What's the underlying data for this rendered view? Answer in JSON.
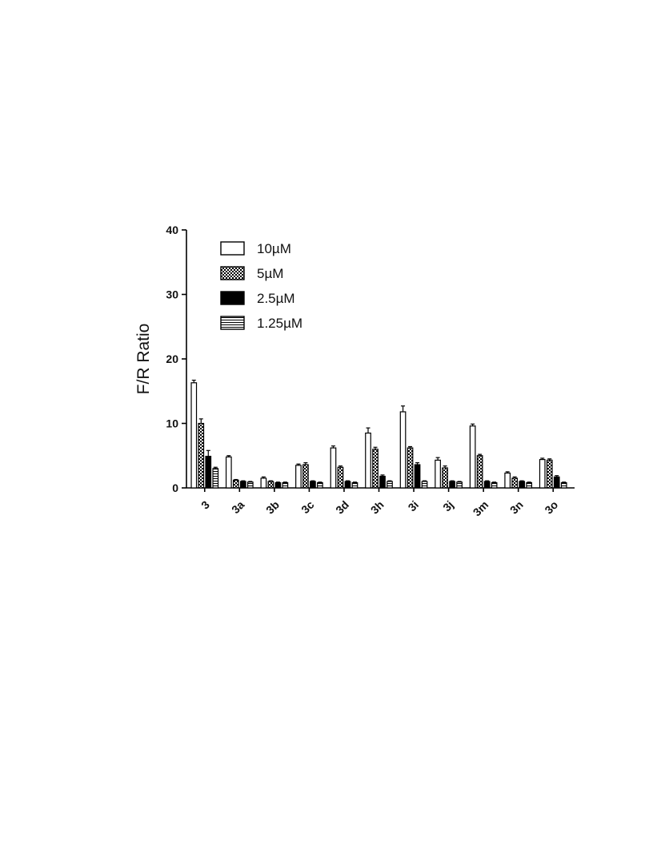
{
  "chart_data": {
    "type": "bar",
    "title": "",
    "xlabel": "",
    "ylabel": "F/R Ratio",
    "ylim": [
      0,
      40
    ],
    "yticks": [
      0,
      10,
      20,
      30,
      40
    ],
    "grid": false,
    "legend_position": "top-left",
    "categories": [
      "3",
      "3a",
      "3b",
      "3c",
      "3d",
      "3h",
      "3i",
      "3j",
      "3m",
      "3n",
      "3o"
    ],
    "series": [
      {
        "name": "10µM",
        "pattern": "open",
        "values": [
          16.3,
          4.8,
          1.5,
          3.5,
          6.2,
          8.5,
          11.8,
          4.3,
          9.6,
          2.3,
          4.4
        ],
        "errors": [
          0.4,
          0.2,
          0.2,
          0.2,
          0.3,
          0.8,
          0.9,
          0.4,
          0.3,
          0.2,
          0.2
        ]
      },
      {
        "name": "5µM",
        "pattern": "checkered",
        "values": [
          10.0,
          1.2,
          1.0,
          3.6,
          3.2,
          6.0,
          6.2,
          3.1,
          5.0,
          1.5,
          4.3
        ],
        "errors": [
          0.7,
          0.1,
          0.1,
          0.3,
          0.2,
          0.3,
          0.2,
          0.3,
          0.2,
          0.2,
          0.2
        ]
      },
      {
        "name": "2.5µM",
        "pattern": "solid",
        "values": [
          4.9,
          1.0,
          0.8,
          1.0,
          1.0,
          1.8,
          3.6,
          1.0,
          1.0,
          1.0,
          1.7
        ],
        "errors": [
          0.9,
          0.1,
          0.1,
          0.1,
          0.1,
          0.2,
          0.3,
          0.1,
          0.1,
          0.1,
          0.2
        ]
      },
      {
        "name": "1.25µM",
        "pattern": "horizontal-lines",
        "values": [
          3.0,
          0.9,
          0.8,
          0.8,
          0.8,
          1.0,
          1.0,
          0.9,
          0.8,
          0.8,
          0.8
        ],
        "errors": [
          0.2,
          0.1,
          0.1,
          0.1,
          0.1,
          0.1,
          0.1,
          0.1,
          0.1,
          0.1,
          0.1
        ]
      }
    ]
  }
}
